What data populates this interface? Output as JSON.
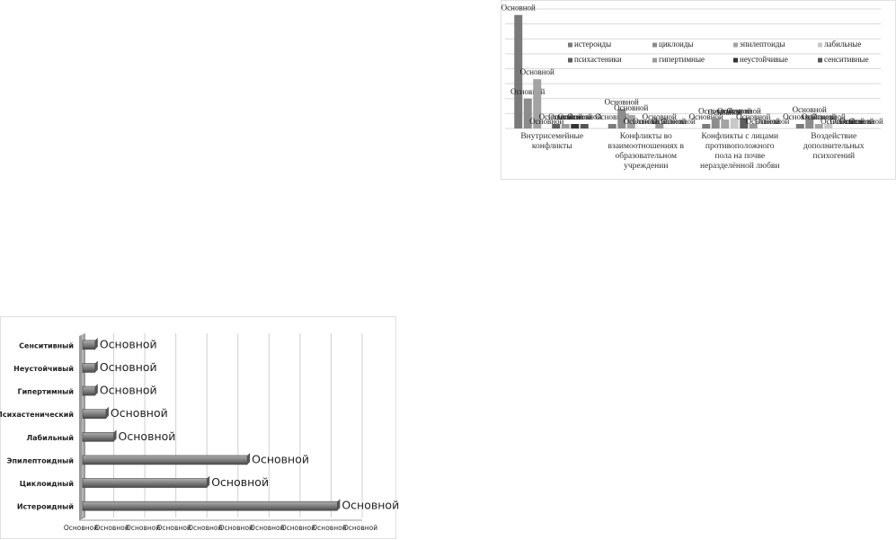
{
  "chart_data": [
    {
      "type": "bar",
      "categories": [
        "Внутрисемейные конфликты",
        "Конфликты во взаимоотношениях в образовательном учреждении",
        "Конфликты с лицами противоположного пола на почве неразделённой любви",
        "Воздействие дополнительных психогений"
      ],
      "series": [
        {
          "name": "истероиды",
          "color": "#7a7a7a",
          "values": [
            7.6,
            0.3,
            0.3,
            0.3
          ],
          "value_labels": [
            "Основной",
            "Основной",
            "Основной",
            "Основной"
          ]
        },
        {
          "name": "циклоиды",
          "color": "#8c8c8c",
          "values": [
            2.0,
            1.3,
            0.7,
            0.8
          ],
          "value_labels": [
            "Основной",
            "Основной",
            "Основной",
            "Основной"
          ]
        },
        {
          "name": "эпилептоиды",
          "color": "#a3a3a3",
          "values": [
            3.3,
            0.9,
            0.6,
            0.3
          ],
          "value_labels": [
            "Основной",
            "Основной",
            "Основной",
            "Основной"
          ]
        },
        {
          "name": "лабильные",
          "color": "#c8c8c8",
          "values": [
            0,
            0,
            0.7,
            0.3
          ],
          "value_labels": [
            "Основной",
            "Основной",
            "Основной",
            "Основной"
          ]
        },
        {
          "name": "психастеники",
          "color": "#5e5e5e",
          "values": [
            0.3,
            0,
            0.7,
            0
          ],
          "value_labels": [
            "Основной",
            "Основной",
            "Основной",
            "Основной"
          ]
        },
        {
          "name": "гипертимные",
          "color": "#9a9a9a",
          "values": [
            0.3,
            0.3,
            0.3,
            0
          ],
          "value_labels": [
            "Основной",
            "Основной",
            "Основной",
            "Основной"
          ]
        },
        {
          "name": "неустойчивые",
          "color": "#333333",
          "values": [
            0.3,
            0,
            0,
            0
          ],
          "value_labels": [
            "Основной",
            "Основной",
            "Основной",
            "Основной"
          ]
        },
        {
          "name": "сенситивные",
          "color": "#555555",
          "values": [
            0.3,
            0,
            0,
            0
          ],
          "value_labels": [
            "Основной",
            "Основной",
            "Основной",
            "Основной"
          ]
        }
      ],
      "ylim": [
        0,
        8
      ],
      "yticks": [
        0,
        1,
        2,
        3,
        4,
        5,
        6,
        7,
        8
      ],
      "grid": true,
      "legend": "inside-top"
    },
    {
      "type": "barh",
      "categories": [
        "Истероидный",
        "Циклоидный",
        "Эпилептоидный",
        "Лабильный",
        "Психастенический",
        "Гипертимный",
        "Неустойчивый",
        "Сенситивный"
      ],
      "values": [
        8.2,
        4.0,
        5.3,
        1.0,
        0.75,
        0.4,
        0.4,
        0.4
      ],
      "value_labels": [
        "Основной",
        "Основной",
        "Основной",
        "Основной",
        "Основной",
        "Основной",
        "Основной",
        "Основной"
      ],
      "color": "#808080",
      "xlim": [
        0,
        9
      ],
      "xticks": [
        {
          "value": 0,
          "label": "Основной"
        },
        {
          "value": 1,
          "label": "Основной"
        },
        {
          "value": 2,
          "label": "Основной"
        },
        {
          "value": 3,
          "label": "Основной"
        },
        {
          "value": 4,
          "label": "Основной"
        },
        {
          "value": 5,
          "label": "Основной"
        },
        {
          "value": 6,
          "label": "Основной"
        },
        {
          "value": 7,
          "label": "Основной"
        },
        {
          "value": 8,
          "label": "Основной"
        },
        {
          "value": 9,
          "label": "Основной"
        }
      ],
      "grid": true
    }
  ]
}
